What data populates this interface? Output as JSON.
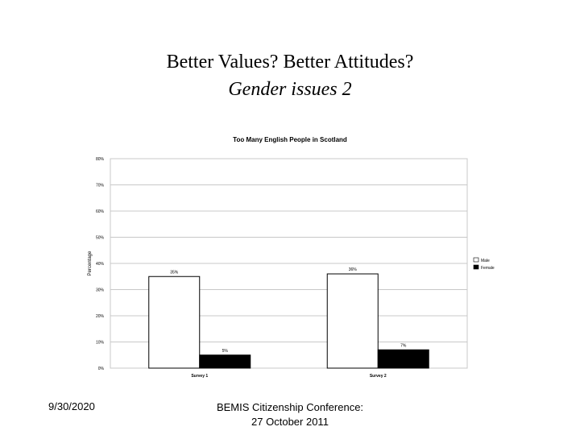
{
  "slide": {
    "title_line1": "Better Values? Better Attitudes?",
    "title_line2": "Gender issues 2"
  },
  "footer": {
    "date": "9/30/2020",
    "conference_line1": "BEMIS Citizenship Conference:",
    "conference_line2": "27 October 2011"
  },
  "chart_data": {
    "type": "bar",
    "title": "Too Many English People in Scotland",
    "xlabel": "",
    "ylabel": "Percentage",
    "categories": [
      "Survey 1",
      "Survey 2"
    ],
    "series": [
      {
        "name": "Male",
        "values": [
          35,
          36
        ],
        "labels": [
          "35%",
          "36%"
        ],
        "color": "#ffffff"
      },
      {
        "name": "Female",
        "values": [
          5,
          7
        ],
        "labels": [
          "5%",
          "7%"
        ],
        "color": "#000000"
      }
    ],
    "ylim": [
      0,
      80
    ],
    "yticks": [
      0,
      10,
      20,
      30,
      40,
      50,
      60,
      70,
      80
    ],
    "ytick_labels": [
      "0%",
      "10%",
      "20%",
      "30%",
      "40%",
      "50%",
      "60%",
      "70%",
      "80%"
    ],
    "grid": true,
    "legend": "right"
  }
}
